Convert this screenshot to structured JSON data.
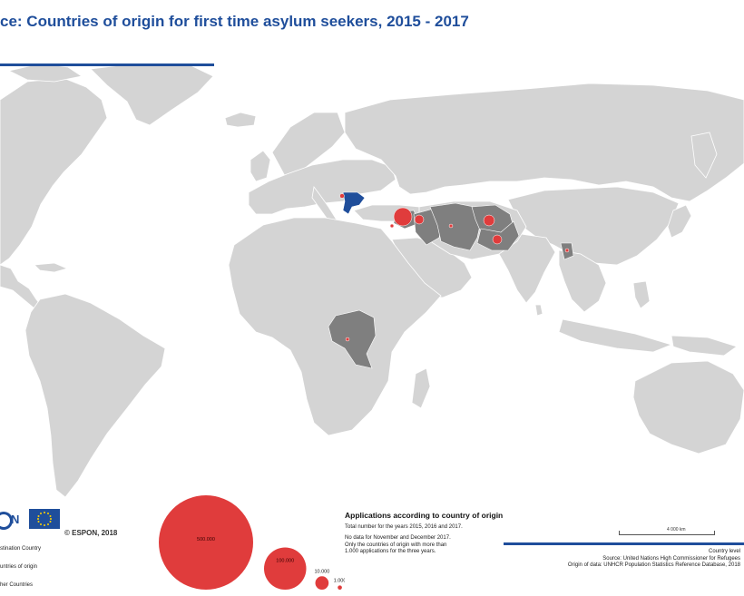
{
  "title": "ce: Countries of origin for first time asylum seekers, 2015 - 2017",
  "colors": {
    "ocean": "#ffffff",
    "land": "#d4d4d4",
    "border": "#ffffff",
    "origin_country": "#7f7f7f",
    "destination_country": "#1f4e9b",
    "bubble": "#e03c3c",
    "title": "#1f4e9b"
  },
  "map": {
    "destination": "Greece",
    "origin_countries": [
      "Syria",
      "Iraq",
      "Iran",
      "Afghanistan",
      "Pakistan",
      "Bangladesh",
      "Democratic Republic of the Congo"
    ]
  },
  "logos": {
    "espon_fragment": "N",
    "copyright": "© ESPON, 2018"
  },
  "legend": {
    "categories": [
      {
        "label": "stination Country"
      },
      {
        "label": "untries of origin"
      },
      {
        "label": "her Countries"
      }
    ],
    "bubbles": [
      {
        "label": "500.000",
        "value": 500000
      },
      {
        "label": "100.000",
        "value": 100000
      },
      {
        "label": "10.000",
        "value": 10000
      },
      {
        "label": "1.000",
        "value": 1000
      }
    ],
    "title": "Applications according to country of origin",
    "subtitle": "Total number for the years 2015, 2016 and 2017.",
    "note_line1": "No data for November and December 2017.",
    "note_line2": "Only the countries of origin with more than",
    "note_line3": "1.000 applications for the three years."
  },
  "scalebar_label": "4 000 km",
  "source": {
    "line1": "Country level",
    "line2": "Source: United Nations High Commissioner for Refugees",
    "line3": "Origin of data: UNHCR Population Statistics Reference Database, 2018"
  }
}
